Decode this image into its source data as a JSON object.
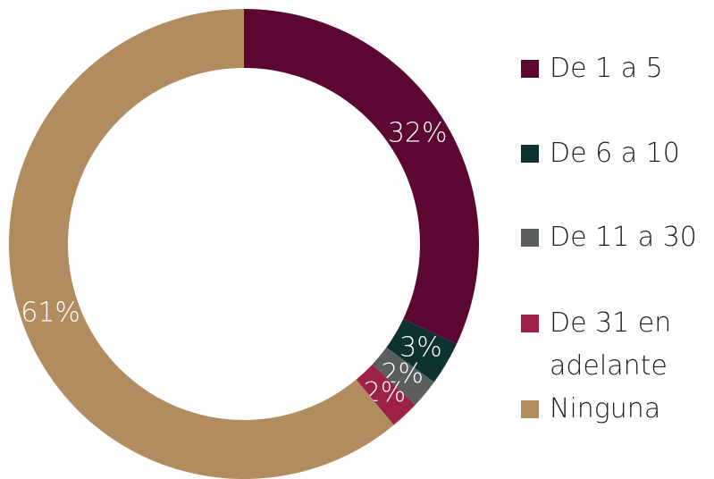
{
  "chart_data": {
    "type": "donut",
    "categories": [
      "De 1 a 5",
      "De 6 a 10",
      "De 11 a 30",
      "De 31 en adelante",
      "Ninguna"
    ],
    "values": [
      32,
      3,
      2,
      2,
      61
    ],
    "value_labels": [
      "32%",
      "3%",
      "2%",
      "2%",
      "61%"
    ],
    "colors": [
      "#5c0632",
      "#0d3330",
      "#5a5e5e",
      "#9e2148",
      "#b08c5f"
    ],
    "legend": "right"
  }
}
